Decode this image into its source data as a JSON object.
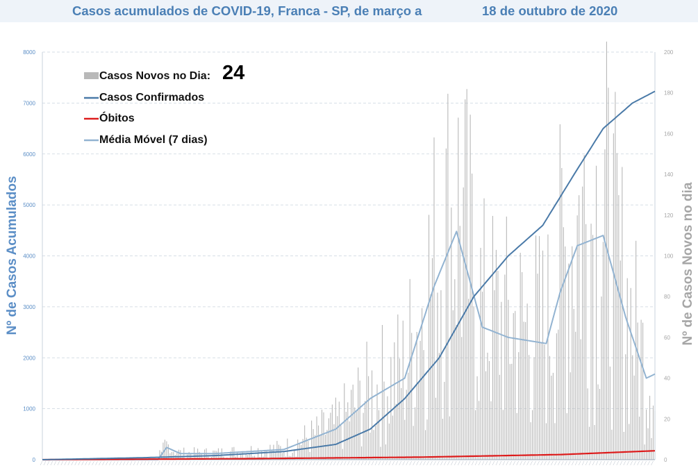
{
  "title": {
    "part1": "Casos acumulados de COVID-19, Franca - SP, de março a",
    "part2": "18 de outubro de 2020"
  },
  "legend": {
    "new_cases": "Casos Novos no Dia:",
    "new_cases_value": "24",
    "confirmed": "Casos Confirmados",
    "deaths": "Óbitos",
    "moving_avg": "Média Móvel (7 dias)"
  },
  "colors": {
    "bars": "#b9b9b9",
    "confirmed": "#4a7aa8",
    "deaths": "#dd1c1c",
    "moving_avg": "#92b3d1",
    "left_axis": "#5b8ec6",
    "right_axis": "#a6a6a6",
    "title": "#4a7fb5"
  },
  "chart_data": {
    "type": "bar+line",
    "title": "Casos acumulados de COVID-19, Franca - SP, de março a 18 de outubro de 2020",
    "ylabel_left": "Nº de Casos Acumulados",
    "ylabel_right": "Nº de Casos Novos no dia",
    "ylim_left": [
      0,
      8000
    ],
    "ylim_right": [
      0,
      200
    ],
    "yticks_left": [
      0,
      1000,
      2000,
      3000,
      4000,
      5000,
      6000,
      7000,
      8000
    ],
    "yticks_right": [
      0,
      20,
      40,
      60,
      80,
      100,
      120,
      140,
      160,
      180,
      200
    ],
    "grid": true,
    "legend_position": "top-left",
    "series_confirmed_approx": [
      {
        "day": 0,
        "value": 0
      },
      {
        "day": 60,
        "value": 40
      },
      {
        "day": 100,
        "value": 80
      },
      {
        "day": 140,
        "value": 160
      },
      {
        "day": 170,
        "value": 300
      },
      {
        "day": 190,
        "value": 600
      },
      {
        "day": 210,
        "value": 1200
      },
      {
        "day": 230,
        "value": 2000
      },
      {
        "day": 250,
        "value": 3200
      },
      {
        "day": 270,
        "value": 4000
      },
      {
        "day": 290,
        "value": 4600
      },
      {
        "day": 310,
        "value": 5700
      },
      {
        "day": 325,
        "value": 6500
      },
      {
        "day": 342,
        "value": 7000
      },
      {
        "day": 355,
        "value": 7230
      }
    ],
    "series_deaths_approx": [
      {
        "day": 0,
        "value": 0
      },
      {
        "day": 120,
        "value": 20
      },
      {
        "day": 220,
        "value": 50
      },
      {
        "day": 300,
        "value": 100
      },
      {
        "day": 355,
        "value": 175
      }
    ],
    "series_moving_avg_approx": [
      {
        "day": 0,
        "value": 0
      },
      {
        "day": 67,
        "value": 0
      },
      {
        "day": 72,
        "value": 6
      },
      {
        "day": 80,
        "value": 3
      },
      {
        "day": 100,
        "value": 3
      },
      {
        "day": 140,
        "value": 5
      },
      {
        "day": 170,
        "value": 15
      },
      {
        "day": 190,
        "value": 30
      },
      {
        "day": 210,
        "value": 40
      },
      {
        "day": 227,
        "value": 85
      },
      {
        "day": 240,
        "value": 112
      },
      {
        "day": 255,
        "value": 65
      },
      {
        "day": 270,
        "value": 60
      },
      {
        "day": 292,
        "value": 57
      },
      {
        "day": 300,
        "value": 82
      },
      {
        "day": 310,
        "value": 105
      },
      {
        "day": 325,
        "value": 110
      },
      {
        "day": 338,
        "value": 70
      },
      {
        "day": 350,
        "value": 40
      },
      {
        "day": 355,
        "value": 42
      }
    ],
    "new_cases_last_day": 24
  }
}
